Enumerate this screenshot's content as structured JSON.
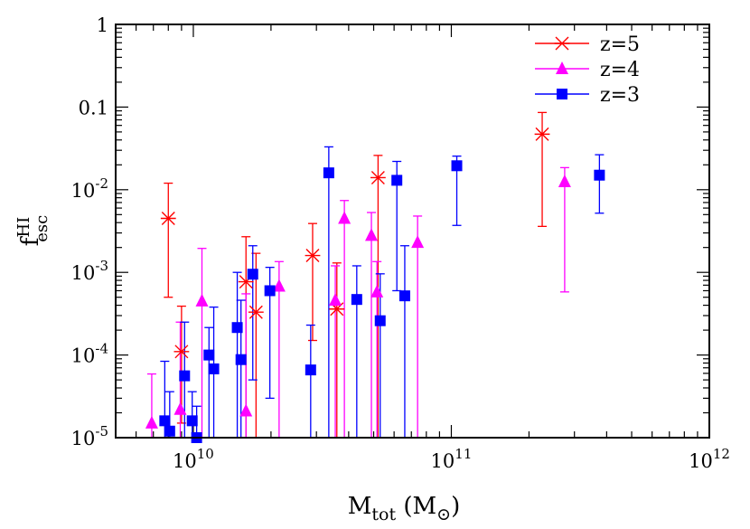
{
  "chart_data": {
    "type": "scatter",
    "xscale": "log",
    "yscale": "log",
    "xlim": [
      5000000000.0,
      1000000000000.0
    ],
    "ylim": [
      1e-05,
      1
    ],
    "xlabel": {
      "main": "M",
      "sub": "tot",
      "unit_open": "(M",
      "unit_sub": "⊙",
      "unit_close": ")"
    },
    "ylabel": {
      "main": "f",
      "sup": "HI",
      "sub": "esc"
    },
    "legend_position": "top-right",
    "xticks": [
      {
        "value": 10000000000.0,
        "base": "10",
        "exp": "10"
      },
      {
        "value": 100000000000.0,
        "base": "10",
        "exp": "11"
      },
      {
        "value": 1000000000000.0,
        "base": "10",
        "exp": "12"
      }
    ],
    "yticks": [
      {
        "value": 1e-05,
        "label": "10",
        "exp": "-5"
      },
      {
        "value": 0.0001,
        "label": "10",
        "exp": "-4"
      },
      {
        "value": 0.001,
        "label": "10",
        "exp": "-3"
      },
      {
        "value": 0.01,
        "label": "10",
        "exp": "-2"
      },
      {
        "value": 0.1,
        "label": "0.1",
        "exp": ""
      },
      {
        "value": 1,
        "label": "1",
        "exp": ""
      }
    ],
    "series": [
      {
        "name": "z=5",
        "color": "#ff0000",
        "marker": "asterisk",
        "points": [
          {
            "x": 8000000000.0,
            "y": 0.0045,
            "ylo": 0.0005,
            "yhi": 0.012
          },
          {
            "x": 9000000000.0,
            "y": 0.00011,
            "ylo": 1.5e-05,
            "yhi": 0.00039
          },
          {
            "x": 16000000000.0,
            "y": 0.00077,
            "ylo": 1e-05,
            "yhi": 0.0027
          },
          {
            "x": 17500000000.0,
            "y": 0.00033,
            "ylo": 1e-05,
            "yhi": 0.0017
          },
          {
            "x": 29000000000.0,
            "y": 0.0016,
            "ylo": 0.00015,
            "yhi": 0.0039
          },
          {
            "x": 36000000000.0,
            "y": 0.00036,
            "ylo": 1e-05,
            "yhi": 0.0013
          },
          {
            "x": 52000000000.0,
            "y": 0.014,
            "ylo": 1e-05,
            "yhi": 0.026
          },
          {
            "x": 225000000000.0,
            "y": 0.047,
            "ylo": 0.0036,
            "yhi": 0.086
          }
        ]
      },
      {
        "name": "z=4",
        "color": "#ff00ff",
        "marker": "triangle",
        "points": [
          {
            "x": 6900000000.0,
            "y": 1.5e-05,
            "ylo": 1e-05,
            "yhi": 5.9e-05
          },
          {
            "x": 8900000000.0,
            "y": 2.2e-05,
            "ylo": 1e-05,
            "yhi": 0.00025
          },
          {
            "x": 10800000000.0,
            "y": 0.00045,
            "ylo": 1e-05,
            "yhi": 0.00195
          },
          {
            "x": 16000000000.0,
            "y": 2.1e-05,
            "ylo": 1e-05,
            "yhi": 0.00055
          },
          {
            "x": 21500000000.0,
            "y": 0.00068,
            "ylo": 1e-05,
            "yhi": 0.00135
          },
          {
            "x": 35500000000.0,
            "y": 0.00046,
            "ylo": 1e-05,
            "yhi": 0.0012
          },
          {
            "x": 38500000000.0,
            "y": 0.0045,
            "ylo": 1e-05,
            "yhi": 0.0074
          },
          {
            "x": 49000000000.0,
            "y": 0.0028,
            "ylo": 1e-05,
            "yhi": 0.0053
          },
          {
            "x": 51500000000.0,
            "y": 0.00058,
            "ylo": 1e-05,
            "yhi": 0.00135
          },
          {
            "x": 74000000000.0,
            "y": 0.0023,
            "ylo": 1e-05,
            "yhi": 0.0048
          },
          {
            "x": 275000000000.0,
            "y": 0.0125,
            "ylo": 0.00058,
            "yhi": 0.0185
          }
        ]
      },
      {
        "name": "z=3",
        "color": "#0000ff",
        "marker": "square",
        "points": [
          {
            "x": 7750000000.0,
            "y": 1.6e-05,
            "ylo": 1e-05,
            "yhi": 8.4e-05
          },
          {
            "x": 8100000000.0,
            "y": 1.2e-05,
            "ylo": 1e-05,
            "yhi": 3.6e-05
          },
          {
            "x": 9250000000.0,
            "y": 5.6e-05,
            "ylo": 1e-05,
            "yhi": 0.00025
          },
          {
            "x": 9900000000.0,
            "y": 1.6e-05,
            "ylo": 1e-05,
            "yhi": 3.6e-05
          },
          {
            "x": 10300000000.0,
            "y": 1e-05,
            "ylo": 1e-05,
            "yhi": 2.4e-05
          },
          {
            "x": 11500000000.0,
            "y": 0.0001,
            "ylo": 1e-05,
            "yhi": 0.000215
          },
          {
            "x": 12000000000.0,
            "y": 6.8e-05,
            "ylo": 1e-05,
            "yhi": 0.00038
          },
          {
            "x": 14800000000.0,
            "y": 0.000215,
            "ylo": 1e-05,
            "yhi": 0.001
          },
          {
            "x": 15300000000.0,
            "y": 8.8e-05,
            "ylo": 1e-05,
            "yhi": 0.00046
          },
          {
            "x": 17000000000.0,
            "y": 0.00095,
            "ylo": 5e-05,
            "yhi": 0.0021
          },
          {
            "x": 19800000000.0,
            "y": 0.0006,
            "ylo": 3e-05,
            "yhi": 0.00115
          },
          {
            "x": 28500000000.0,
            "y": 6.6e-05,
            "ylo": 1e-05,
            "yhi": 0.00023
          },
          {
            "x": 33500000000.0,
            "y": 0.016,
            "ylo": 1e-05,
            "yhi": 0.033
          },
          {
            "x": 43000000000.0,
            "y": 0.00047,
            "ylo": 1e-05,
            "yhi": 0.0012
          },
          {
            "x": 53000000000.0,
            "y": 0.00026,
            "ylo": 1e-05,
            "yhi": 0.00096
          },
          {
            "x": 61500000000.0,
            "y": 0.013,
            "ylo": 0.0006,
            "yhi": 0.022
          },
          {
            "x": 66000000000.0,
            "y": 0.00052,
            "ylo": 1e-05,
            "yhi": 0.0021
          },
          {
            "x": 105000000000.0,
            "y": 0.0195,
            "ylo": 0.0037,
            "yhi": 0.0255
          },
          {
            "x": 375000000000.0,
            "y": 0.015,
            "ylo": 0.0052,
            "yhi": 0.0265
          }
        ]
      }
    ]
  }
}
